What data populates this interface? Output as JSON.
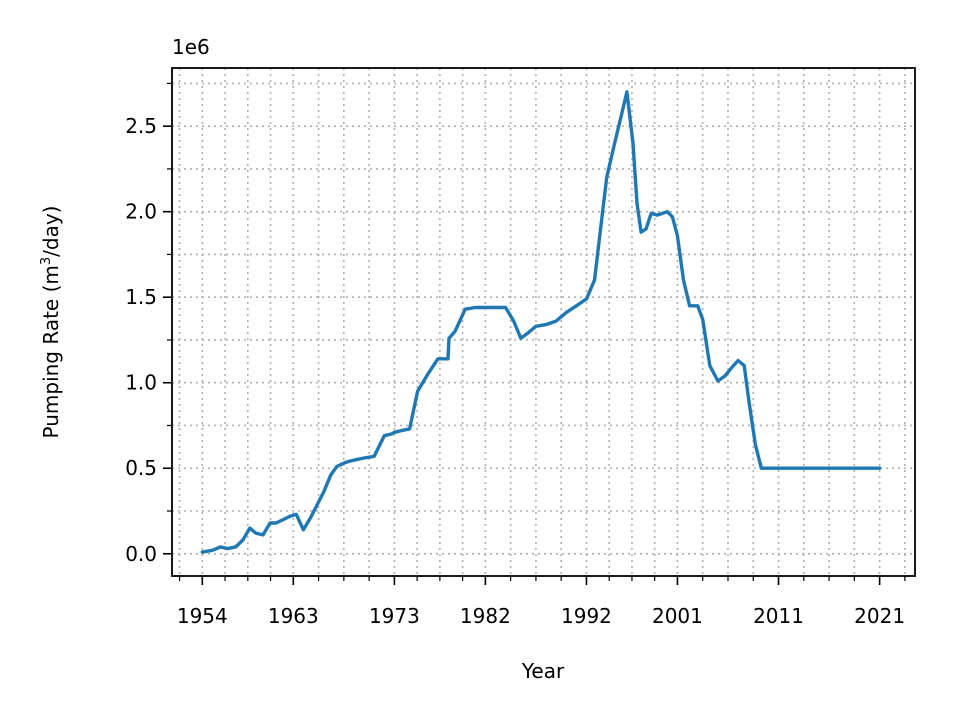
{
  "chart_data": {
    "type": "line",
    "title": "",
    "xlabel": "Year",
    "ylabel": "Pumping Rate (m³/day)",
    "ylabel_parts": {
      "pre": "Pumping Rate (m",
      "sup": "3",
      "post": "/day)"
    },
    "y_offset_label": "1e6",
    "xlim": [
      1951,
      2024.5
    ],
    "ylim": [
      -0.13,
      2.84
    ],
    "x_ticks": [
      1954,
      1963,
      1973,
      1982,
      1992,
      2001,
      2011,
      2021
    ],
    "x_tick_labels": [
      "1954",
      "1963",
      "1973",
      "1982",
      "1992",
      "2001",
      "2011",
      "2021"
    ],
    "y_ticks": [
      0.0,
      0.5,
      1.0,
      1.5,
      2.0,
      2.5
    ],
    "y_tick_labels": [
      "0.0",
      "0.5",
      "1.0",
      "1.5",
      "2.0",
      "2.5"
    ],
    "grid": true,
    "legend": "none",
    "series": [
      {
        "color": "#1f77b4",
        "x": [
          1954.0,
          1955.0,
          1955.8,
          1956.5,
          1957.3,
          1958.0,
          1958.7,
          1959.3,
          1960.0,
          1960.7,
          1961.3,
          1962.0,
          1962.7,
          1963.3,
          1964.0,
          1964.7,
          1965.3,
          1966.0,
          1966.7,
          1967.3,
          1968.0,
          1968.5,
          1969.2,
          1970.0,
          1971.0,
          1972.0,
          1972.7,
          1973.0,
          1973.7,
          1974.5,
          1975.3,
          1976.3,
          1977.3,
          1978.3,
          1978.4,
          1979.0,
          1980.0,
          1981.0,
          1982.0,
          1983.0,
          1984.0,
          1984.8,
          1985.5,
          1986.2,
          1987.0,
          1988.0,
          1989.0,
          1990.0,
          1991.0,
          1992.0,
          1992.8,
          1993.5,
          1994.0,
          1994.7,
          1995.4,
          1996.0,
          1996.6,
          1997.0,
          1997.4,
          1997.9,
          1998.4,
          1999.0,
          1999.5,
          2000.0,
          2000.5,
          2001.0,
          2001.6,
          2002.2,
          2003.0,
          2003.5,
          2004.2,
          2005.0,
          2005.7,
          2006.4,
          2007.0,
          2007.6,
          2008.1,
          2008.7,
          2009.3,
          2010.0,
          2021.0
        ],
        "values": [
          0.01,
          0.02,
          0.04,
          0.03,
          0.04,
          0.08,
          0.15,
          0.12,
          0.11,
          0.18,
          0.18,
          0.2,
          0.22,
          0.23,
          0.14,
          0.21,
          0.28,
          0.36,
          0.46,
          0.51,
          0.53,
          0.54,
          0.55,
          0.56,
          0.57,
          0.69,
          0.7,
          0.71,
          0.72,
          0.73,
          0.95,
          1.05,
          1.14,
          1.14,
          1.26,
          1.3,
          1.43,
          1.44,
          1.44,
          1.44,
          1.44,
          1.36,
          1.26,
          1.29,
          1.33,
          1.34,
          1.36,
          1.41,
          1.45,
          1.49,
          1.6,
          1.95,
          2.2,
          2.38,
          2.55,
          2.7,
          2.4,
          2.05,
          1.88,
          1.9,
          1.99,
          1.98,
          1.99,
          2.0,
          1.97,
          1.86,
          1.6,
          1.45,
          1.45,
          1.37,
          1.1,
          1.01,
          1.04,
          1.09,
          1.13,
          1.1,
          0.88,
          0.64,
          0.5,
          0.5,
          0.5
        ]
      }
    ]
  }
}
